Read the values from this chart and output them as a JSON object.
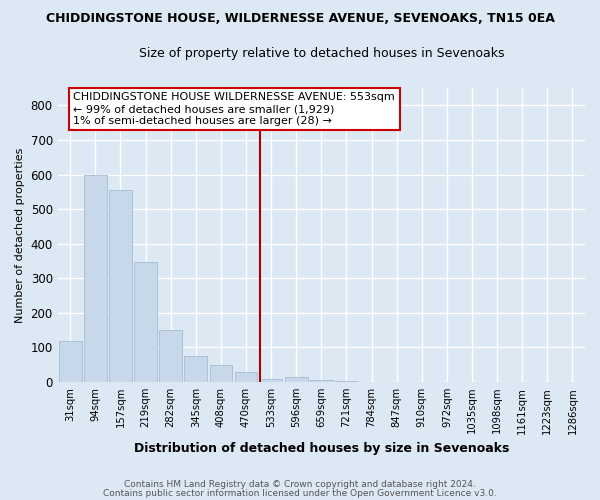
{
  "title": "CHIDDINGSTONE HOUSE, WILDERNESSE AVENUE, SEVENOAKS, TN15 0EA",
  "subtitle": "Size of property relative to detached houses in Sevenoaks",
  "xlabel": "Distribution of detached houses by size in Sevenoaks",
  "ylabel": "Number of detached properties",
  "footer1": "Contains HM Land Registry data © Crown copyright and database right 2024.",
  "footer2": "Contains public sector information licensed under the Open Government Licence v3.0.",
  "categories": [
    "31sqm",
    "94sqm",
    "157sqm",
    "219sqm",
    "282sqm",
    "345sqm",
    "408sqm",
    "470sqm",
    "533sqm",
    "596sqm",
    "659sqm",
    "721sqm",
    "784sqm",
    "847sqm",
    "910sqm",
    "972sqm",
    "1035sqm",
    "1098sqm",
    "1161sqm",
    "1223sqm",
    "1286sqm"
  ],
  "values": [
    120,
    600,
    555,
    348,
    150,
    75,
    50,
    30,
    10,
    15,
    5,
    2,
    0,
    0,
    0,
    0,
    0,
    0,
    0,
    0,
    0
  ],
  "bar_color": "#c8d8eb",
  "bar_edge_color": "#9ab4cc",
  "vline_index": 8,
  "vline_color": "#aa0000",
  "annotation_title": "CHIDDINGSTONE HOUSE WILDERNESSE AVENUE: 553sqm",
  "annotation_line1": "← 99% of detached houses are smaller (1,929)",
  "annotation_line2": "1% of semi-detached houses are larger (28) →",
  "annotation_box_edge_color": "#cc0000",
  "annotation_fill": "#ffffff",
  "ylim": [
    0,
    850
  ],
  "yticks": [
    0,
    100,
    200,
    300,
    400,
    500,
    600,
    700,
    800
  ],
  "bg_color": "#dde8f5",
  "plot_bg_color": "#dde8f5",
  "grid_color": "#ffffff"
}
